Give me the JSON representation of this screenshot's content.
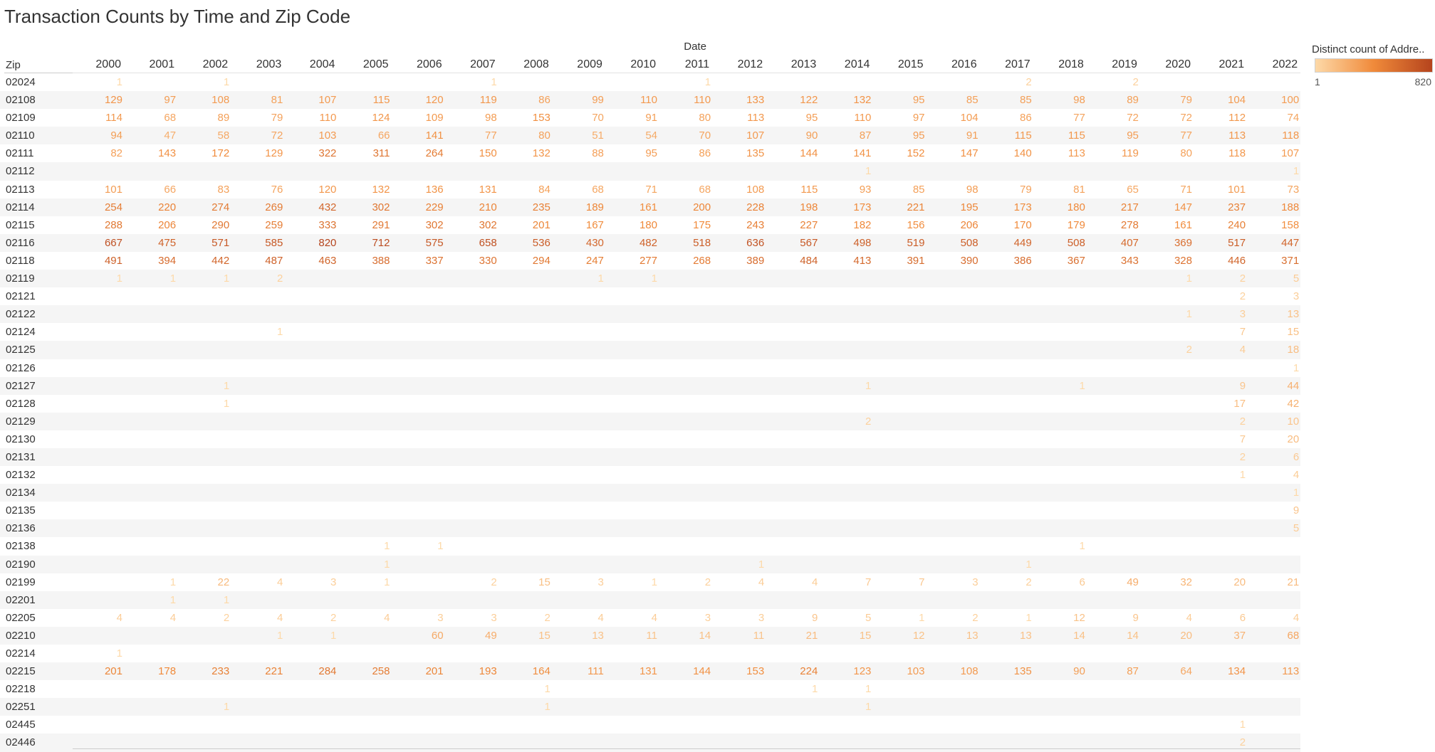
{
  "title": "Transaction Counts by Time and Zip Code",
  "header": {
    "column_group_label": "Date",
    "row_label": "Zip"
  },
  "legend": {
    "title": "Distinct count of Addre..",
    "min_label": "1",
    "max_label": "820",
    "color_low": "#fdd9a8",
    "color_mid": "#f08a3a",
    "color_high": "#b5441d"
  },
  "chart_data": {
    "type": "heatmap",
    "title": "Transaction Counts by Time and Zip Code",
    "xlabel": "Date",
    "ylabel": "Zip",
    "color_range": [
      1,
      820
    ],
    "years": [
      "2000",
      "2001",
      "2002",
      "2003",
      "2004",
      "2005",
      "2006",
      "2007",
      "2008",
      "2009",
      "2010",
      "2011",
      "2012",
      "2013",
      "2014",
      "2015",
      "2016",
      "2017",
      "2018",
      "2019",
      "2020",
      "2021",
      "2022"
    ],
    "rows": [
      {
        "zip": "02024",
        "values": [
          1,
          null,
          1,
          null,
          null,
          null,
          null,
          1,
          null,
          null,
          null,
          1,
          null,
          null,
          null,
          null,
          null,
          2,
          null,
          2,
          null,
          null,
          null
        ]
      },
      {
        "zip": "02108",
        "values": [
          129,
          97,
          108,
          81,
          107,
          115,
          120,
          119,
          86,
          99,
          110,
          110,
          133,
          122,
          132,
          95,
          85,
          85,
          98,
          89,
          79,
          104,
          100
        ]
      },
      {
        "zip": "02109",
        "values": [
          114,
          68,
          89,
          79,
          110,
          124,
          109,
          98,
          153,
          70,
          91,
          80,
          113,
          95,
          110,
          97,
          104,
          86,
          77,
          72,
          72,
          112,
          74
        ]
      },
      {
        "zip": "02110",
        "values": [
          94,
          47,
          58,
          72,
          103,
          66,
          141,
          77,
          80,
          51,
          54,
          70,
          107,
          90,
          87,
          95,
          91,
          115,
          115,
          95,
          77,
          113,
          118
        ]
      },
      {
        "zip": "02111",
        "values": [
          82,
          143,
          172,
          129,
          322,
          311,
          264,
          150,
          132,
          88,
          95,
          86,
          135,
          144,
          141,
          152,
          147,
          140,
          113,
          119,
          80,
          118,
          107
        ]
      },
      {
        "zip": "02112",
        "values": [
          null,
          null,
          null,
          null,
          null,
          null,
          null,
          null,
          null,
          null,
          null,
          null,
          null,
          null,
          1,
          null,
          null,
          null,
          null,
          null,
          null,
          null,
          1
        ]
      },
      {
        "zip": "02113",
        "values": [
          101,
          66,
          83,
          76,
          120,
          132,
          136,
          131,
          84,
          68,
          71,
          68,
          108,
          115,
          93,
          85,
          98,
          79,
          81,
          65,
          71,
          101,
          73
        ]
      },
      {
        "zip": "02114",
        "values": [
          254,
          220,
          274,
          269,
          432,
          302,
          229,
          210,
          235,
          189,
          161,
          200,
          228,
          198,
          173,
          221,
          195,
          173,
          180,
          217,
          147,
          237,
          188
        ]
      },
      {
        "zip": "02115",
        "values": [
          288,
          206,
          290,
          259,
          333,
          291,
          302,
          302,
          201,
          167,
          180,
          175,
          243,
          227,
          182,
          156,
          206,
          170,
          179,
          278,
          161,
          240,
          158
        ]
      },
      {
        "zip": "02116",
        "values": [
          667,
          475,
          571,
          585,
          820,
          712,
          575,
          658,
          536,
          430,
          482,
          518,
          636,
          567,
          498,
          519,
          508,
          449,
          508,
          407,
          369,
          517,
          447
        ]
      },
      {
        "zip": "02118",
        "values": [
          491,
          394,
          442,
          487,
          463,
          388,
          337,
          330,
          294,
          247,
          277,
          268,
          389,
          484,
          413,
          391,
          390,
          386,
          367,
          343,
          328,
          446,
          371
        ]
      },
      {
        "zip": "02119",
        "values": [
          1,
          1,
          1,
          2,
          null,
          null,
          null,
          null,
          null,
          1,
          1,
          null,
          null,
          null,
          null,
          null,
          null,
          null,
          null,
          null,
          1,
          2,
          5
        ]
      },
      {
        "zip": "02121",
        "values": [
          null,
          null,
          null,
          null,
          null,
          null,
          null,
          null,
          null,
          null,
          null,
          null,
          null,
          null,
          null,
          null,
          null,
          null,
          null,
          null,
          null,
          2,
          3
        ]
      },
      {
        "zip": "02122",
        "values": [
          null,
          null,
          null,
          null,
          null,
          null,
          null,
          null,
          null,
          null,
          null,
          null,
          null,
          null,
          null,
          null,
          null,
          null,
          null,
          null,
          1,
          3,
          13
        ]
      },
      {
        "zip": "02124",
        "values": [
          null,
          null,
          null,
          1,
          null,
          null,
          null,
          null,
          null,
          null,
          null,
          null,
          null,
          null,
          null,
          null,
          null,
          null,
          null,
          null,
          null,
          7,
          15
        ]
      },
      {
        "zip": "02125",
        "values": [
          null,
          null,
          null,
          null,
          null,
          null,
          null,
          null,
          null,
          null,
          null,
          null,
          null,
          null,
          null,
          null,
          null,
          null,
          null,
          null,
          2,
          4,
          18
        ]
      },
      {
        "zip": "02126",
        "values": [
          null,
          null,
          null,
          null,
          null,
          null,
          null,
          null,
          null,
          null,
          null,
          null,
          null,
          null,
          null,
          null,
          null,
          null,
          null,
          null,
          null,
          null,
          1
        ]
      },
      {
        "zip": "02127",
        "values": [
          null,
          null,
          1,
          null,
          null,
          null,
          null,
          null,
          null,
          null,
          null,
          null,
          null,
          null,
          1,
          null,
          null,
          null,
          1,
          null,
          null,
          9,
          44
        ]
      },
      {
        "zip": "02128",
        "values": [
          null,
          null,
          1,
          null,
          null,
          null,
          null,
          null,
          null,
          null,
          null,
          null,
          null,
          null,
          null,
          null,
          null,
          null,
          null,
          null,
          null,
          17,
          42
        ]
      },
      {
        "zip": "02129",
        "values": [
          null,
          null,
          null,
          null,
          null,
          null,
          null,
          null,
          null,
          null,
          null,
          null,
          null,
          null,
          2,
          null,
          null,
          null,
          null,
          null,
          null,
          2,
          10
        ]
      },
      {
        "zip": "02130",
        "values": [
          null,
          null,
          null,
          null,
          null,
          null,
          null,
          null,
          null,
          null,
          null,
          null,
          null,
          null,
          null,
          null,
          null,
          null,
          null,
          null,
          null,
          7,
          20
        ]
      },
      {
        "zip": "02131",
        "values": [
          null,
          null,
          null,
          null,
          null,
          null,
          null,
          null,
          null,
          null,
          null,
          null,
          null,
          null,
          null,
          null,
          null,
          null,
          null,
          null,
          null,
          2,
          6
        ]
      },
      {
        "zip": "02132",
        "values": [
          null,
          null,
          null,
          null,
          null,
          null,
          null,
          null,
          null,
          null,
          null,
          null,
          null,
          null,
          null,
          null,
          null,
          null,
          null,
          null,
          null,
          1,
          4
        ]
      },
      {
        "zip": "02134",
        "values": [
          null,
          null,
          null,
          null,
          null,
          null,
          null,
          null,
          null,
          null,
          null,
          null,
          null,
          null,
          null,
          null,
          null,
          null,
          null,
          null,
          null,
          null,
          1
        ]
      },
      {
        "zip": "02135",
        "values": [
          null,
          null,
          null,
          null,
          null,
          null,
          null,
          null,
          null,
          null,
          null,
          null,
          null,
          null,
          null,
          null,
          null,
          null,
          null,
          null,
          null,
          null,
          9
        ]
      },
      {
        "zip": "02136",
        "values": [
          null,
          null,
          null,
          null,
          null,
          null,
          null,
          null,
          null,
          null,
          null,
          null,
          null,
          null,
          null,
          null,
          null,
          null,
          null,
          null,
          null,
          null,
          5
        ]
      },
      {
        "zip": "02138",
        "values": [
          null,
          null,
          null,
          null,
          null,
          1,
          1,
          null,
          null,
          null,
          null,
          null,
          null,
          null,
          null,
          null,
          null,
          null,
          1,
          null,
          null,
          null,
          null
        ]
      },
      {
        "zip": "02190",
        "values": [
          null,
          null,
          null,
          null,
          null,
          1,
          null,
          null,
          null,
          null,
          null,
          null,
          1,
          null,
          null,
          null,
          null,
          1,
          null,
          null,
          null,
          null,
          null
        ]
      },
      {
        "zip": "02199",
        "values": [
          null,
          1,
          22,
          4,
          3,
          1,
          null,
          2,
          15,
          3,
          1,
          2,
          4,
          4,
          7,
          7,
          3,
          2,
          6,
          49,
          32,
          20,
          21
        ]
      },
      {
        "zip": "02201",
        "values": [
          null,
          1,
          1,
          null,
          null,
          null,
          null,
          null,
          null,
          null,
          null,
          null,
          null,
          null,
          null,
          null,
          null,
          null,
          null,
          null,
          null,
          null,
          null
        ]
      },
      {
        "zip": "02205",
        "values": [
          4,
          4,
          2,
          4,
          2,
          4,
          3,
          3,
          2,
          4,
          4,
          3,
          3,
          9,
          5,
          1,
          2,
          1,
          12,
          9,
          4,
          6,
          4
        ]
      },
      {
        "zip": "02210",
        "values": [
          null,
          null,
          null,
          1,
          1,
          null,
          60,
          49,
          15,
          13,
          11,
          14,
          11,
          21,
          15,
          12,
          13,
          13,
          14,
          14,
          20,
          37,
          68
        ]
      },
      {
        "zip": "02214",
        "values": [
          1,
          null,
          null,
          null,
          null,
          null,
          null,
          null,
          null,
          null,
          null,
          null,
          null,
          null,
          null,
          null,
          null,
          null,
          null,
          null,
          null,
          null,
          null
        ]
      },
      {
        "zip": "02215",
        "values": [
          201,
          178,
          233,
          221,
          284,
          258,
          201,
          193,
          164,
          111,
          131,
          144,
          153,
          224,
          123,
          103,
          108,
          135,
          90,
          87,
          64,
          134,
          113
        ]
      },
      {
        "zip": "02218",
        "values": [
          null,
          null,
          null,
          null,
          null,
          null,
          null,
          null,
          1,
          null,
          null,
          null,
          null,
          1,
          1,
          null,
          null,
          null,
          null,
          null,
          null,
          null,
          null
        ]
      },
      {
        "zip": "02251",
        "values": [
          null,
          null,
          1,
          null,
          null,
          null,
          null,
          null,
          1,
          null,
          null,
          null,
          null,
          null,
          1,
          null,
          null,
          null,
          null,
          null,
          null,
          null,
          null
        ]
      },
      {
        "zip": "02445",
        "values": [
          null,
          null,
          null,
          null,
          null,
          null,
          null,
          null,
          null,
          null,
          null,
          null,
          null,
          null,
          null,
          null,
          null,
          null,
          null,
          null,
          null,
          1,
          null
        ]
      },
      {
        "zip": "02446",
        "values": [
          null,
          null,
          null,
          null,
          null,
          null,
          null,
          null,
          null,
          null,
          null,
          null,
          null,
          null,
          null,
          null,
          null,
          null,
          null,
          null,
          null,
          2,
          null
        ]
      }
    ]
  }
}
